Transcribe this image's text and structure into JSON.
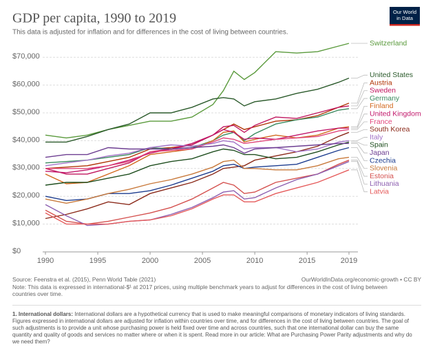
{
  "chart_data": {
    "type": "line",
    "title": "GDP per capita, 1990 to 2019",
    "subtitle": "This data is adjusted for inflation and for differences in the cost of living between countries.",
    "logo": [
      "Our World",
      "in Data"
    ],
    "x": [
      1990,
      1992,
      1994,
      1996,
      1998,
      2000,
      2002,
      2004,
      2006,
      2007,
      2008,
      2009,
      2010,
      2012,
      2014,
      2016,
      2018,
      2019
    ],
    "xlim": [
      1990,
      2019
    ],
    "xticks": [
      1990,
      1995,
      2000,
      2005,
      2010,
      2015,
      2019
    ],
    "ylim": [
      0,
      75000
    ],
    "yticks": [
      {
        "value": 0,
        "label": "$0"
      },
      {
        "value": 10000,
        "label": "$10,000"
      },
      {
        "value": 20000,
        "label": "$20,000"
      },
      {
        "value": 30000,
        "label": "$30,000"
      },
      {
        "value": 40000,
        "label": "$40,000"
      },
      {
        "value": 50000,
        "label": "$50,000"
      },
      {
        "value": 60000,
        "label": "$60,000"
      },
      {
        "value": 70000,
        "label": "$70,000"
      }
    ],
    "grid": true,
    "series": [
      {
        "name": "Switzerland",
        "color": "#5a9a3c",
        "values": [
          42000,
          41000,
          42000,
          44000,
          45500,
          47000,
          47000,
          48500,
          53000,
          58000,
          65000,
          62000,
          64500,
          72000,
          71500,
          72000,
          74000,
          75000
        ]
      },
      {
        "name": "United States",
        "color": "#2b5a2b",
        "values": [
          39500,
          39500,
          41500,
          44000,
          46000,
          50000,
          50000,
          52000,
          55000,
          55500,
          55000,
          52500,
          54000,
          55000,
          57000,
          58500,
          61000,
          62500
        ]
      },
      {
        "name": "Austria",
        "color": "#b13507",
        "values": [
          30000,
          30500,
          31000,
          32500,
          34000,
          37000,
          37500,
          38500,
          42000,
          44000,
          46000,
          44000,
          45000,
          47000,
          47500,
          49000,
          52000,
          53500
        ]
      },
      {
        "name": "Sweden",
        "color": "#c0165e",
        "values": [
          30000,
          28000,
          28000,
          30000,
          32000,
          36000,
          37000,
          38500,
          42000,
          45000,
          45500,
          43000,
          45500,
          48500,
          48000,
          50000,
          52000,
          52500
        ]
      },
      {
        "name": "Germany",
        "color": "#3a8a5e",
        "values": [
          32000,
          32500,
          33000,
          34000,
          35000,
          37500,
          37000,
          37500,
          40000,
          42000,
          43000,
          40000,
          42500,
          46000,
          47500,
          48500,
          51000,
          51500
        ]
      },
      {
        "name": "Finland",
        "color": "#d2691e",
        "values": [
          28000,
          24500,
          25000,
          28000,
          31000,
          35000,
          36000,
          37000,
          40000,
          43000,
          43500,
          39500,
          40500,
          42000,
          41000,
          42000,
          44500,
          45000
        ]
      },
      {
        "name": "United Kingdom",
        "color": "#c2186b",
        "values": [
          29000,
          28500,
          29500,
          31000,
          33000,
          35500,
          37000,
          39000,
          42000,
          44000,
          43000,
          40500,
          41000,
          40500,
          42000,
          43500,
          44500,
          44500
        ]
      },
      {
        "name": "France",
        "color": "#e0457b",
        "values": [
          30000,
          30000,
          30000,
          31000,
          32500,
          36000,
          36500,
          37000,
          39500,
          41000,
          40500,
          39000,
          39500,
          40500,
          41000,
          41500,
          43500,
          44000
        ]
      },
      {
        "name": "South Korea",
        "color": "#8b2a1a",
        "values": [
          12000,
          13500,
          15500,
          18000,
          17000,
          21000,
          23000,
          25000,
          28000,
          30000,
          30500,
          31000,
          33000,
          34500,
          36000,
          38000,
          41500,
          43000
        ]
      },
      {
        "name": "Italy",
        "color": "#a273c7",
        "values": [
          31000,
          32000,
          33000,
          34500,
          35500,
          37500,
          38500,
          38000,
          39000,
          40000,
          39500,
          37000,
          37500,
          37500,
          36000,
          37000,
          39500,
          40000
        ]
      },
      {
        "name": "Spain",
        "color": "#1f4e1f",
        "values": [
          24000,
          25000,
          25000,
          26500,
          28000,
          31000,
          32500,
          33500,
          36000,
          37000,
          36500,
          35000,
          35000,
          33500,
          34000,
          36000,
          38500,
          39500
        ]
      },
      {
        "name": "Japan",
        "color": "#6d3e91",
        "values": [
          34000,
          35000,
          35000,
          37500,
          37000,
          37000,
          37000,
          37500,
          38000,
          38500,
          37500,
          35500,
          37000,
          37500,
          38000,
          38500,
          39000,
          39000
        ]
      },
      {
        "name": "Czechia",
        "color": "#1d3d8f",
        "values": [
          20000,
          18500,
          19000,
          21000,
          21000,
          22000,
          24000,
          26500,
          29000,
          31000,
          31500,
          30000,
          30500,
          31000,
          31500,
          34000,
          36500,
          37500
        ]
      },
      {
        "name": "Slovenia",
        "color": "#c8793b",
        "values": [
          19000,
          17500,
          19000,
          21000,
          22500,
          24500,
          26000,
          28000,
          30500,
          32500,
          33000,
          30000,
          30000,
          29500,
          29500,
          31000,
          33500,
          34000
        ]
      },
      {
        "name": "Estonia",
        "color": "#d4504e",
        "values": [
          15000,
          11000,
          10000,
          11000,
          12500,
          14000,
          16000,
          19000,
          23000,
          25000,
          24000,
          21000,
          21500,
          25000,
          26500,
          28000,
          31500,
          33000
        ]
      },
      {
        "name": "Lithuania",
        "color": "#8d5fb0",
        "values": [
          17000,
          13000,
          9500,
          10000,
          11000,
          11500,
          13500,
          16000,
          19500,
          21500,
          22000,
          19000,
          19500,
          23000,
          26000,
          28000,
          31000,
          32500
        ]
      },
      {
        "name": "Latvia",
        "color": "#e55b5b",
        "values": [
          14000,
          10000,
          10000,
          10000,
          11000,
          11500,
          13000,
          15500,
          19000,
          20500,
          20500,
          18000,
          18000,
          21000,
          23000,
          25000,
          28000,
          29500
        ]
      }
    ]
  },
  "footer": {
    "source": "Source: Feenstra et al. (2015), Penn World Table (2021)",
    "url": "OurWorldInData.org/economic-growth • CC BY",
    "note": "Note: This data is expressed in international-$¹ at 2017 prices, using multiple benchmark years to adjust for differences in the cost of living between countries over time.",
    "footnote_term": "1. International dollars:",
    "footnote_text": "International dollars are a hypothetical currency that is used to make meaningful comparisons of monetary indicators of living standards. Figures expressed in international dollars are adjusted for inflation within countries over time, and for differences in the cost of living between countries. The goal of such adjustments is to provide a unit whose purchasing power is held fixed over time and across countries, such that one international dollar can buy the same quantity and quality of goods and services no matter where or when it is spent. Read more in our article: What are Purchasing Power Parity adjustments and why do we need them?"
  }
}
